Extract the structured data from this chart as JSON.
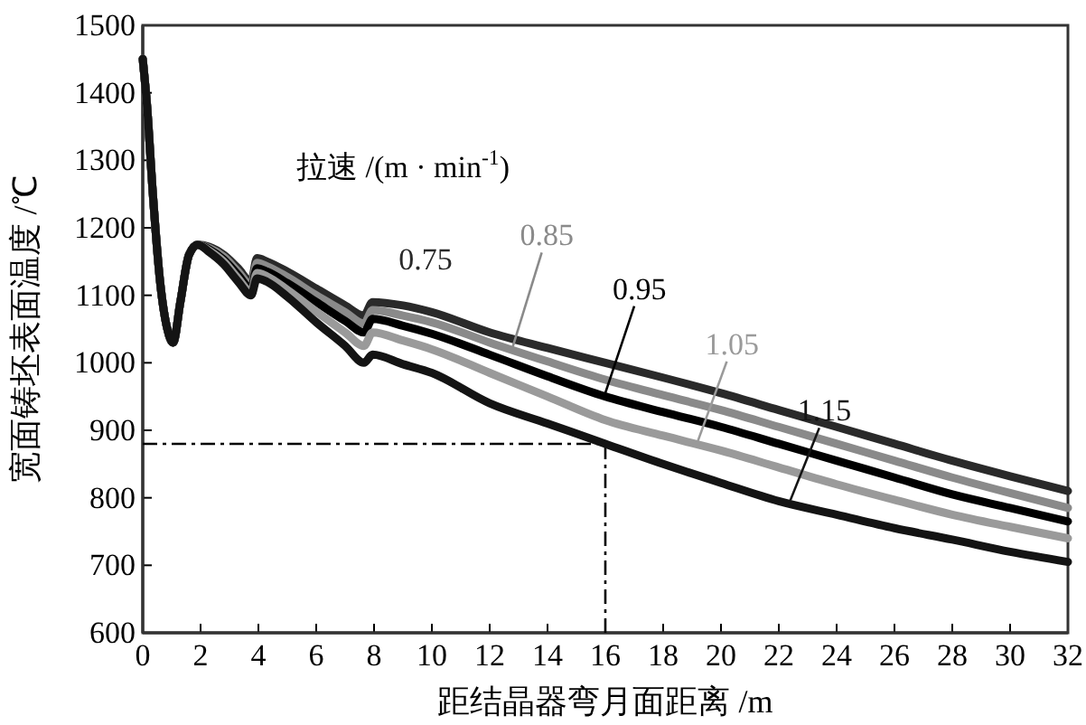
{
  "chart_data": {
    "type": "line",
    "xlabel": "距结晶器弯月面距离 /m",
    "ylabel": "宽面铸坯表面温度 /℃",
    "legend_title": "拉速 /(m · min$^{-1}$)",
    "x": [
      0,
      0.15,
      0.35,
      0.6,
      0.85,
      1.05,
      1.3,
      1.6,
      1.9,
      2.3,
      2.8,
      3.3,
      3.75,
      3.95,
      4.3,
      5,
      6,
      7,
      7.65,
      7.95,
      9,
      10,
      12,
      14,
      16,
      18,
      20,
      22,
      24,
      26,
      28,
      30,
      32
    ],
    "series": [
      {
        "name": "0.75",
        "color": "#2a2a2a",
        "values": [
          1450,
          1380,
          1250,
          1120,
          1050,
          1030,
          1090,
          1160,
          1175,
          1172,
          1160,
          1140,
          1120,
          1155,
          1150,
          1135,
          1110,
          1085,
          1070,
          1090,
          1085,
          1075,
          1045,
          1022,
          1000,
          978,
          955,
          930,
          905,
          880,
          855,
          832,
          810
        ]
      },
      {
        "name": "0.85",
        "color": "#8a8a8a",
        "values": [
          1450,
          1380,
          1250,
          1120,
          1050,
          1030,
          1090,
          1160,
          1175,
          1170,
          1157,
          1135,
          1115,
          1148,
          1143,
          1127,
          1100,
          1075,
          1058,
          1078,
          1070,
          1060,
          1030,
          1002,
          975,
          952,
          930,
          905,
          880,
          855,
          830,
          807,
          785
        ]
      },
      {
        "name": "0.95",
        "color": "#000000",
        "values": [
          1450,
          1380,
          1250,
          1120,
          1050,
          1030,
          1090,
          1160,
          1175,
          1168,
          1153,
          1130,
          1110,
          1140,
          1135,
          1118,
          1090,
          1062,
          1045,
          1065,
          1055,
          1043,
          1012,
          980,
          950,
          927,
          905,
          880,
          855,
          830,
          805,
          785,
          765
        ]
      },
      {
        "name": "1.05",
        "color": "#9a9a9a",
        "values": [
          1450,
          1380,
          1250,
          1120,
          1050,
          1030,
          1090,
          1160,
          1175,
          1166,
          1150,
          1125,
          1105,
          1133,
          1128,
          1108,
          1076,
          1045,
          1025,
          1045,
          1033,
          1020,
          985,
          950,
          915,
          892,
          870,
          845,
          820,
          797,
          775,
          757,
          740
        ]
      },
      {
        "name": "1.15",
        "color": "#141414",
        "values": [
          1450,
          1380,
          1250,
          1120,
          1050,
          1030,
          1090,
          1160,
          1175,
          1164,
          1146,
          1120,
          1100,
          1125,
          1120,
          1098,
          1060,
          1025,
          1000,
          1012,
          998,
          985,
          940,
          910,
          880,
          850,
          822,
          795,
          775,
          755,
          738,
          720,
          705
        ]
      }
    ],
    "xlim": [
      0,
      32
    ],
    "ylim": [
      600,
      1500
    ],
    "xticks": [
      0,
      2,
      4,
      6,
      8,
      10,
      12,
      14,
      16,
      18,
      20,
      22,
      24,
      26,
      28,
      30,
      32
    ],
    "yticks": [
      600,
      700,
      800,
      900,
      1000,
      1100,
      1200,
      1300,
      1400,
      1500
    ],
    "ref_lines": [
      {
        "axis": "y",
        "value": 880,
        "line_style": "dashdot"
      },
      {
        "axis": "x",
        "value": 16,
        "line_style": "dashdot"
      }
    ],
    "grid": false
  }
}
